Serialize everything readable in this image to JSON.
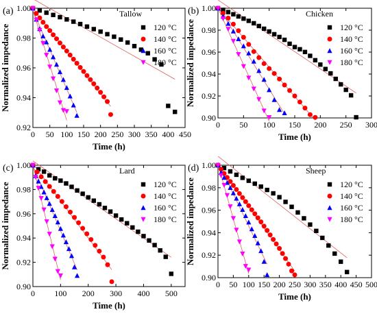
{
  "chart_data": [
    {
      "type": "scatter",
      "panel_label": "(a)",
      "legend_title": "Tallow",
      "xlabel": "Time (h)",
      "ylabel": "Normalized impedance",
      "xlim": [
        0,
        450
      ],
      "ylim": [
        0.92,
        1.0
      ],
      "xticks": [
        "0",
        "50",
        "100",
        "150",
        "200",
        "250",
        "300",
        "350",
        "400",
        "450"
      ],
      "yticks": [
        "0.92",
        "0.94",
        "0.96",
        "0.98",
        "1.00"
      ],
      "legend_placement": "top-right",
      "series": [
        {
          "name": "120 °C",
          "marker": "square",
          "color": "#000000",
          "x": [
            0,
            20,
            40,
            60,
            80,
            100,
            120,
            140,
            160,
            180,
            200,
            220,
            240,
            260,
            280,
            300,
            320,
            340,
            360,
            380,
            400,
            420
          ],
          "y": [
            1.0,
            0.9985,
            0.997,
            0.9955,
            0.994,
            0.9925,
            0.991,
            0.9894,
            0.9877,
            0.986,
            0.9843,
            0.9826,
            0.9809,
            0.979,
            0.977,
            0.9746,
            0.9722,
            0.9698,
            0.9657,
            0.9623,
            0.9345,
            0.9305
          ]
        },
        {
          "name": "140 °C",
          "marker": "circle",
          "color": "#ff0000",
          "x": [
            0,
            10,
            20,
            30,
            40,
            50,
            60,
            70,
            80,
            90,
            100,
            110,
            120,
            130,
            140,
            150,
            160,
            170,
            180,
            190,
            200,
            210,
            220,
            230
          ],
          "y": [
            1.0,
            0.9965,
            0.9935,
            0.9906,
            0.9877,
            0.985,
            0.9822,
            0.9795,
            0.9767,
            0.974,
            0.9713,
            0.9686,
            0.9658,
            0.9631,
            0.9603,
            0.9576,
            0.9548,
            0.9521,
            0.9493,
            0.9465,
            0.9436,
            0.9406,
            0.9374,
            0.9287
          ]
        },
        {
          "name": "160 °C",
          "marker": "triangle-up",
          "color": "#0000ff",
          "x": [
            0,
            10,
            20,
            30,
            40,
            50,
            60,
            70,
            80,
            90,
            100,
            110,
            120,
            130
          ],
          "y": [
            1.0,
            0.9925,
            0.9862,
            0.9813,
            0.9773,
            0.9723,
            0.9673,
            0.9623,
            0.9573,
            0.9521,
            0.9467,
            0.941,
            0.935,
            0.928
          ]
        },
        {
          "name": "180 °C",
          "marker": "triangle-down",
          "color": "#ff00ff",
          "x": [
            0,
            10,
            20,
            30,
            40,
            50,
            60,
            70,
            80,
            90,
            100
          ],
          "y": [
            1.0,
            0.9922,
            0.9853,
            0.9766,
            0.9686,
            0.9607,
            0.9528,
            0.9447,
            0.9367,
            0.9316,
            0.9308
          ]
        }
      ]
    },
    {
      "type": "scatter",
      "panel_label": "(b)",
      "legend_title": "Chicken",
      "xlabel": "Time (h)",
      "ylabel": "Normalized impedance",
      "xlim": [
        0,
        300
      ],
      "ylim": [
        0.9,
        1.0
      ],
      "xticks": [
        "0",
        "50",
        "100",
        "150",
        "200",
        "250",
        "300"
      ],
      "yticks": [
        "0.90",
        "0.92",
        "0.94",
        "0.96",
        "0.98",
        "1.00"
      ],
      "legend_placement": "top-right",
      "series": [
        {
          "name": "120 °C",
          "marker": "square",
          "color": "#000000",
          "x": [
            0,
            10,
            20,
            30,
            40,
            50,
            60,
            70,
            80,
            90,
            100,
            110,
            120,
            130,
            140,
            150,
            160,
            170,
            180,
            190,
            200,
            210,
            220,
            230,
            240,
            250,
            260,
            270
          ],
          "y": [
            1.0,
            0.9985,
            0.9965,
            0.9945,
            0.9925,
            0.9905,
            0.9885,
            0.9863,
            0.9838,
            0.9813,
            0.9788,
            0.9763,
            0.9738,
            0.9712,
            0.9676,
            0.9646,
            0.9626,
            0.9601,
            0.9566,
            0.9526,
            0.9486,
            0.9446,
            0.9406,
            0.9356,
            0.9306,
            0.9256,
            0.9206,
            0.9006
          ]
        },
        {
          "name": "140 °C",
          "marker": "circle",
          "color": "#ff0000",
          "x": [
            0,
            10,
            20,
            30,
            40,
            50,
            60,
            70,
            80,
            90,
            100,
            110,
            120,
            130,
            140,
            150,
            160,
            170,
            180,
            190
          ],
          "y": [
            1.0,
            0.9955,
            0.991,
            0.9855,
            0.9795,
            0.9735,
            0.967,
            0.9605,
            0.955,
            0.9495,
            0.945,
            0.9405,
            0.9355,
            0.93,
            0.925,
            0.92,
            0.9145,
            0.909,
            0.903,
            0.9005
          ]
        },
        {
          "name": "160 °C",
          "marker": "triangle-up",
          "color": "#0000ff",
          "x": [
            0,
            10,
            20,
            30,
            40,
            50,
            60,
            70,
            80,
            90,
            100,
            110,
            120,
            130
          ],
          "y": [
            1.0,
            0.9925,
            0.986,
            0.979,
            0.972,
            0.9655,
            0.959,
            0.9515,
            0.943,
            0.935,
            0.9255,
            0.9165,
            0.9075,
            0.9045
          ]
        },
        {
          "name": "180 °C",
          "marker": "triangle-down",
          "color": "#ff00ff",
          "x": [
            0,
            10,
            20,
            30,
            40,
            50,
            60,
            70,
            80,
            90,
            100
          ],
          "y": [
            1.0,
            0.9905,
            0.981,
            0.97,
            0.958,
            0.947,
            0.9365,
            0.9265,
            0.917,
            0.9065,
            0.9005
          ]
        }
      ]
    },
    {
      "type": "scatter",
      "panel_label": "(c)",
      "legend_title": "Lard",
      "xlabel": "Time (h)",
      "ylabel": "Normalized impedance",
      "xlim": [
        0,
        550
      ],
      "ylim": [
        0.9,
        1.0
      ],
      "xticks": [
        "0",
        "100",
        "200",
        "300",
        "400",
        "500"
      ],
      "yticks": [
        "0.90",
        "0.92",
        "0.94",
        "0.96",
        "0.98",
        "1.00"
      ],
      "legend_placement": "top-right",
      "series": [
        {
          "name": "120 °C",
          "marker": "square",
          "color": "#000000",
          "x": [
            0,
            20,
            40,
            60,
            80,
            100,
            120,
            140,
            160,
            180,
            200,
            220,
            240,
            260,
            280,
            300,
            320,
            340,
            360,
            380,
            400,
            420,
            440,
            460,
            480,
            500
          ],
          "y": [
            1.0,
            0.9967,
            0.9947,
            0.9916,
            0.9892,
            0.9873,
            0.985,
            0.9822,
            0.9792,
            0.9765,
            0.9735,
            0.9708,
            0.9678,
            0.9648,
            0.9618,
            0.9585,
            0.9553,
            0.9522,
            0.9487,
            0.9452,
            0.9416,
            0.938,
            0.9342,
            0.9298,
            0.9245,
            0.9105
          ]
        },
        {
          "name": "140 °C",
          "marker": "circle",
          "color": "#ff0000",
          "x": [
            0,
            15,
            30,
            45,
            60,
            75,
            90,
            105,
            120,
            135,
            150,
            165,
            180,
            195,
            210,
            225,
            240,
            255,
            270,
            285
          ],
          "y": [
            1.0,
            0.9945,
            0.9905,
            0.9865,
            0.9825,
            0.9784,
            0.9743,
            0.9701,
            0.9658,
            0.9614,
            0.957,
            0.9526,
            0.948,
            0.9435,
            0.9388,
            0.934,
            0.9292,
            0.9243,
            0.918,
            0.904
          ]
        },
        {
          "name": "160 °C",
          "marker": "triangle-up",
          "color": "#0000ff",
          "x": [
            0,
            10,
            20,
            30,
            40,
            50,
            60,
            70,
            80,
            90,
            100,
            110,
            120,
            130,
            140,
            150,
            160
          ],
          "y": [
            1.0,
            0.9913,
            0.9868,
            0.9823,
            0.9778,
            0.9731,
            0.9683,
            0.9633,
            0.9583,
            0.9531,
            0.9477,
            0.9423,
            0.9368,
            0.9311,
            0.9253,
            0.9161,
            0.909
          ]
        },
        {
          "name": "180 °C",
          "marker": "triangle-down",
          "color": "#ff00ff",
          "x": [
            0,
            10,
            20,
            30,
            40,
            50,
            60,
            70,
            80,
            90,
            100
          ],
          "y": [
            1.0,
            0.9902,
            0.9812,
            0.9728,
            0.9634,
            0.9536,
            0.9433,
            0.933,
            0.9228,
            0.9125,
            0.909
          ]
        }
      ]
    },
    {
      "type": "scatter",
      "panel_label": "(d)",
      "legend_title": "Sheep",
      "xlabel": "Time (h)",
      "ylabel": "Normalized impedance",
      "xlim": [
        0,
        500
      ],
      "ylim": [
        0.9,
        1.0
      ],
      "xticks": [
        "0",
        "50",
        "100",
        "150",
        "200",
        "250",
        "300",
        "350",
        "400",
        "450",
        "500"
      ],
      "yticks": [
        "0.90",
        "0.92",
        "0.94",
        "0.96",
        "0.98",
        "1.00"
      ],
      "legend_placement": "top-right",
      "series": [
        {
          "name": "120 °C",
          "marker": "square",
          "color": "#000000",
          "x": [
            0,
            20,
            40,
            60,
            80,
            100,
            120,
            140,
            160,
            180,
            200,
            220,
            240,
            260,
            280,
            300,
            320,
            340,
            360,
            380,
            400,
            420
          ],
          "y": [
            1.0,
            0.9975,
            0.9945,
            0.9915,
            0.9888,
            0.9862,
            0.9836,
            0.981,
            0.978,
            0.975,
            0.9716,
            0.9674,
            0.963,
            0.958,
            0.9528,
            0.9472,
            0.9416,
            0.9354,
            0.9286,
            0.9214,
            0.9142,
            0.905
          ]
        },
        {
          "name": "140 °C",
          "marker": "circle",
          "color": "#ff0000",
          "x": [
            0,
            10,
            20,
            30,
            40,
            50,
            60,
            70,
            80,
            90,
            100,
            110,
            120,
            130,
            140,
            150,
            160,
            170,
            180,
            190,
            200,
            210,
            220,
            230,
            240,
            250
          ],
          "y": [
            1.0,
            0.9964,
            0.9927,
            0.9891,
            0.9855,
            0.982,
            0.9784,
            0.9748,
            0.9712,
            0.9676,
            0.964,
            0.9604,
            0.9568,
            0.9532,
            0.9496,
            0.9458,
            0.942,
            0.938,
            0.934,
            0.93,
            0.926,
            0.9215,
            0.917,
            0.912,
            0.906,
            0.9025
          ]
        },
        {
          "name": "160 °C",
          "marker": "triangle-up",
          "color": "#0000ff",
          "x": [
            0,
            10,
            20,
            30,
            40,
            50,
            60,
            70,
            80,
            90,
            100,
            110,
            120,
            130,
            140,
            150,
            160
          ],
          "y": [
            1.0,
            0.9935,
            0.989,
            0.9845,
            0.98,
            0.9753,
            0.9705,
            0.9655,
            0.9605,
            0.955,
            0.9493,
            0.9433,
            0.9373,
            0.9308,
            0.9238,
            0.9143,
            0.9025
          ]
        },
        {
          "name": "180 °C",
          "marker": "triangle-down",
          "color": "#ff00ff",
          "x": [
            0,
            10,
            20,
            30,
            40,
            50,
            60,
            70,
            80,
            90,
            100
          ],
          "y": [
            1.0,
            0.9908,
            0.9823,
            0.9733,
            0.9632,
            0.9528,
            0.9424,
            0.932,
            0.9212,
            0.9102,
            0.907
          ]
        }
      ]
    }
  ]
}
